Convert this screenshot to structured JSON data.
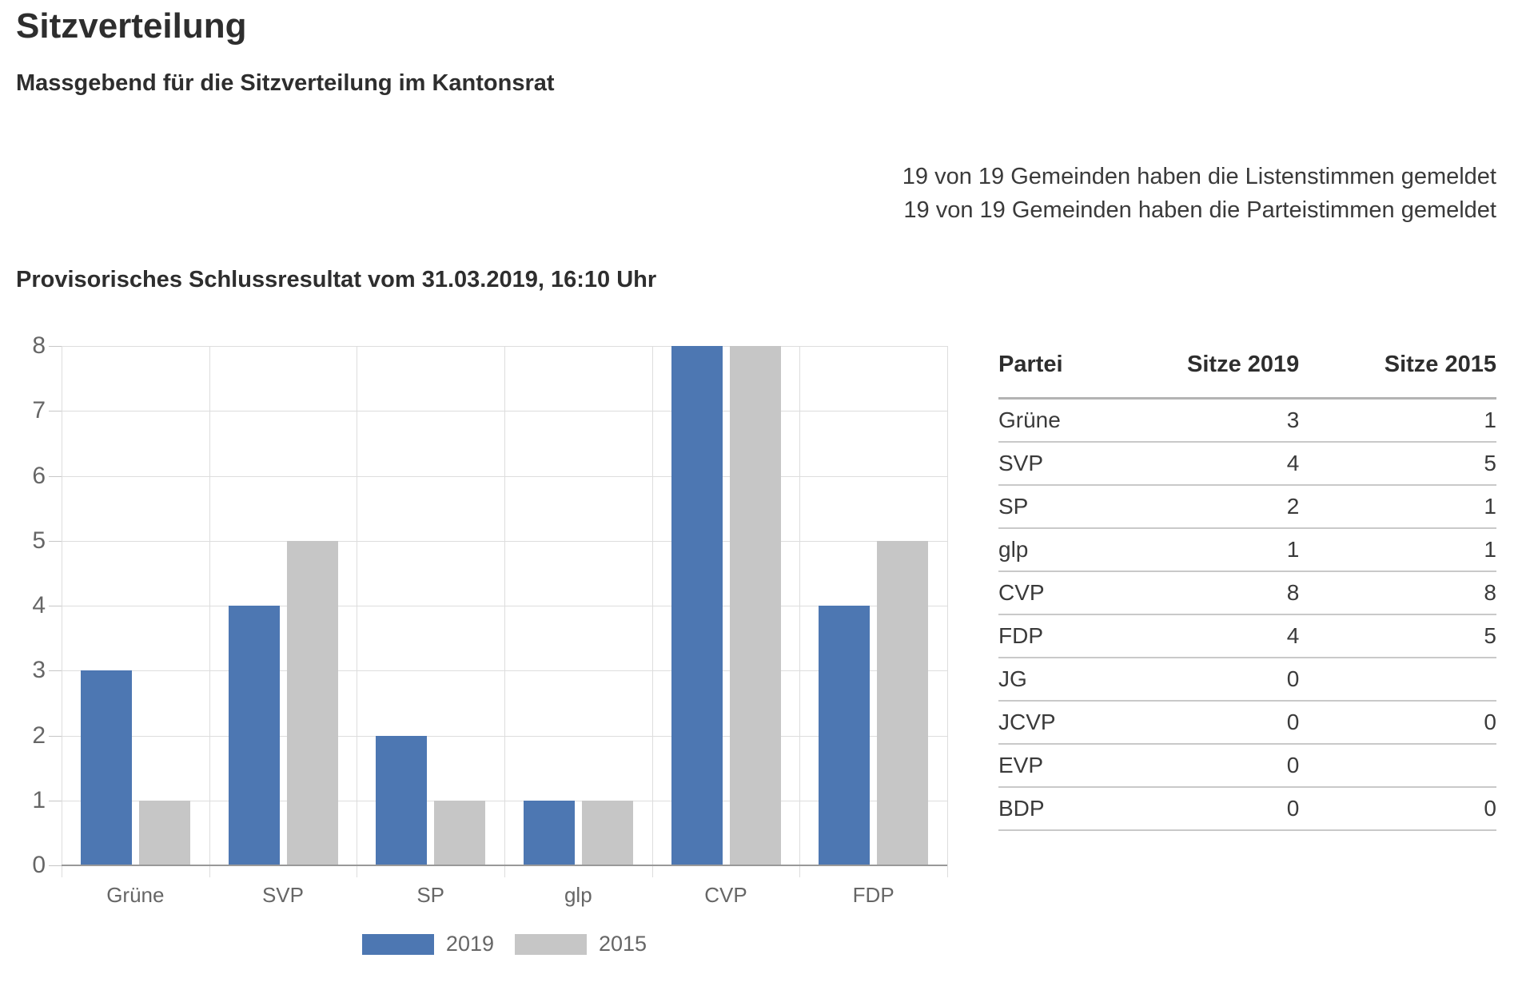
{
  "header": {
    "title": "Sitzverteilung",
    "subtitle": "Massgebend für die Sitzverteilung im Kantonsrat",
    "reporting_status": [
      "19 von 19 Gemeinden haben die Listenstimmen gemeldet",
      "19 von 19 Gemeinden haben die Parteistimmen gemeldet"
    ],
    "result_status": "Provisorisches Schlussresultat vom 31.03.2019, 16:10 Uhr"
  },
  "chart_data": {
    "type": "bar",
    "categories": [
      "Grüne",
      "SVP",
      "SP",
      "glp",
      "CVP",
      "FDP"
    ],
    "series": [
      {
        "name": "2019",
        "color": "#4d77b2",
        "values": [
          3,
          4,
          2,
          1,
          8,
          4
        ]
      },
      {
        "name": "2015",
        "color": "#c6c6c6",
        "values": [
          1,
          5,
          1,
          1,
          8,
          5
        ]
      }
    ],
    "ylim": [
      0,
      8
    ],
    "ytick_step": 1,
    "xlabel": "",
    "ylabel": "",
    "grid": true,
    "legend_position": "bottom"
  },
  "table": {
    "columns": [
      "Partei",
      "Sitze 2019",
      "Sitze 2015"
    ],
    "rows": [
      [
        "Grüne",
        "3",
        "1"
      ],
      [
        "SVP",
        "4",
        "5"
      ],
      [
        "SP",
        "2",
        "1"
      ],
      [
        "glp",
        "1",
        "1"
      ],
      [
        "CVP",
        "8",
        "8"
      ],
      [
        "FDP",
        "4",
        "5"
      ],
      [
        "JG",
        "0",
        ""
      ],
      [
        "JCVP",
        "0",
        "0"
      ],
      [
        "EVP",
        "0",
        ""
      ],
      [
        "BDP",
        "0",
        "0"
      ]
    ]
  },
  "colors": {
    "series_2019": "#4d77b2",
    "series_2015": "#c6c6c6",
    "gridline": "#dddddd",
    "baseline": "#999999",
    "axis_text": "#666666"
  }
}
